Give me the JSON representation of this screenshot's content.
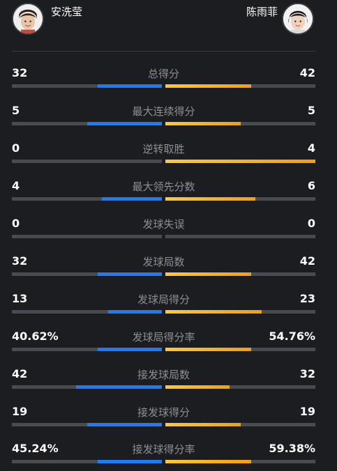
{
  "players": {
    "left": {
      "name": "安洗莹",
      "color": "#1e7cf6"
    },
    "right": {
      "name": "陈雨菲",
      "color": "#f7a919"
    }
  },
  "stats": [
    {
      "label": "总得分",
      "left": "32",
      "right": "42",
      "left_frac": 0.43,
      "right_frac": 0.57
    },
    {
      "label": "最大连续得分",
      "left": "5",
      "right": "5",
      "left_frac": 0.5,
      "right_frac": 0.5
    },
    {
      "label": "逆转取胜",
      "left": "0",
      "right": "4",
      "left_frac": 0.0,
      "right_frac": 1.0
    },
    {
      "label": "最大领先分数",
      "left": "4",
      "right": "6",
      "left_frac": 0.4,
      "right_frac": 0.6
    },
    {
      "label": "发球失误",
      "left": "0",
      "right": "0",
      "left_frac": 0.0,
      "right_frac": 0.0
    },
    {
      "label": "发球局数",
      "left": "32",
      "right": "42",
      "left_frac": 0.43,
      "right_frac": 0.57
    },
    {
      "label": "发球局得分",
      "left": "13",
      "right": "23",
      "left_frac": 0.36,
      "right_frac": 0.64
    },
    {
      "label": "发球局得分率",
      "left": "40.62%",
      "right": "54.76%",
      "left_frac": 0.43,
      "right_frac": 0.57
    },
    {
      "label": "接发球局数",
      "left": "42",
      "right": "32",
      "left_frac": 0.57,
      "right_frac": 0.43
    },
    {
      "label": "接发球得分",
      "left": "19",
      "right": "19",
      "left_frac": 0.5,
      "right_frac": 0.5
    },
    {
      "label": "接发球得分率",
      "left": "45.24%",
      "right": "59.38%",
      "left_frac": 0.43,
      "right_frac": 0.57
    }
  ]
}
